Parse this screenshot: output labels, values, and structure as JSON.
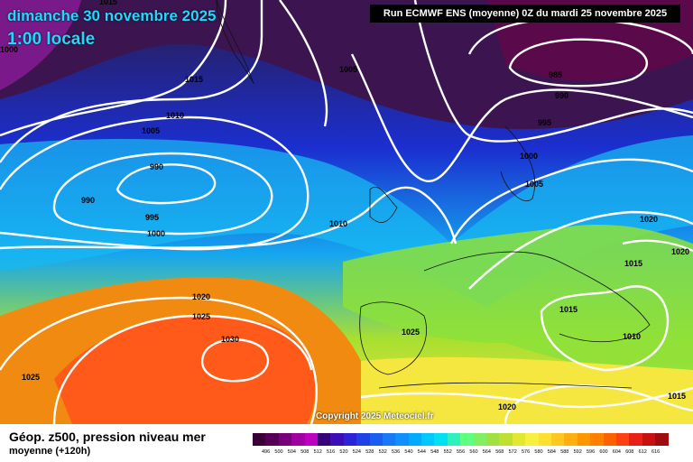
{
  "header": {
    "date_line": "dimanche 30 novembre 2025",
    "time_line": "1:00 locale",
    "run_info": "Run ECMWF ENS (moyenne) 0Z du mardi 25 novembre 2025"
  },
  "footer": {
    "parameter": "Géop. z500, pression niveau mer",
    "subtitle": "moyenne   (+120h)",
    "copyright": "Copyright 2025 Meteociel.fr"
  },
  "isobar_labels": [
    "1015",
    "1000",
    "1015",
    "1005",
    "985",
    "990",
    "1010",
    "1005",
    "995",
    "990",
    "990",
    "1000",
    "1005",
    "995",
    "1000",
    "1010",
    "1020",
    "1020",
    "1015",
    "1020",
    "1025",
    "1015",
    "1030",
    "1010",
    "1025",
    "1015",
    "1020"
  ],
  "color_scale": {
    "colors": [
      "#3a0036",
      "#550055",
      "#7a007a",
      "#a000a0",
      "#c000c0",
      "#37007a",
      "#3b0fb5",
      "#2b24d8",
      "#2040e8",
      "#1b5cf2",
      "#1878f8",
      "#1090ff",
      "#00aaff",
      "#00c8ff",
      "#00e0f0",
      "#30f0c0",
      "#60ff80",
      "#80f060",
      "#a0e040",
      "#c0e030",
      "#e0e830",
      "#f8f040",
      "#ffe030",
      "#ffc820",
      "#ffb010",
      "#ff9800",
      "#ff8000",
      "#ff6000",
      "#ff4010",
      "#e82018",
      "#c81010",
      "#a00c0c"
    ],
    "labels": [
      "496",
      "500",
      "504",
      "508",
      "512",
      "516",
      "520",
      "524",
      "528",
      "532",
      "536",
      "540",
      "544",
      "548",
      "552",
      "556",
      "560",
      "564",
      "568",
      "572",
      "576",
      "580",
      "584",
      "588",
      "592",
      "596",
      "600",
      "604",
      "608",
      "612",
      "616"
    ]
  }
}
